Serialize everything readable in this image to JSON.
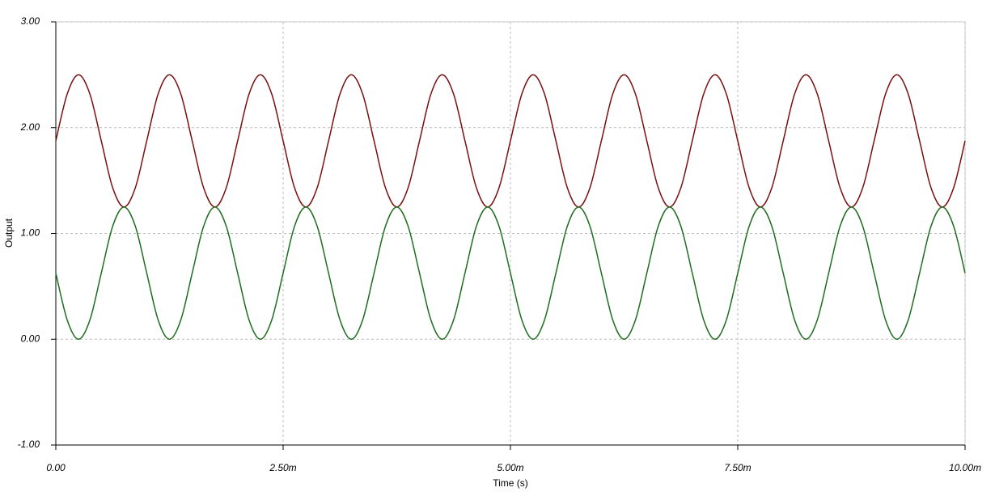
{
  "chart_data": {
    "type": "line",
    "xlabel": "Time (s)",
    "ylabel": "Output",
    "x": [
      0,
      0.000125,
      0.00025,
      0.000375,
      0.0005,
      0.000625,
      0.00075,
      0.000875,
      0.001,
      0.001125,
      0.00125,
      0.001375,
      0.0015,
      0.001625,
      0.00175,
      0.001875,
      0.002,
      0.002125,
      0.00225,
      0.002375,
      0.0025,
      0.002625,
      0.00275,
      0.002875,
      0.003,
      0.003125,
      0.00325,
      0.003375,
      0.0035,
      0.003625,
      0.00375,
      0.003875,
      0.004,
      0.004125,
      0.00425,
      0.004375,
      0.0045,
      0.004625,
      0.00475,
      0.004875,
      0.005,
      0.005125,
      0.00525,
      0.005375,
      0.0055,
      0.005625,
      0.00575,
      0.005875,
      0.006,
      0.006125,
      0.00625,
      0.006375,
      0.0065,
      0.006625,
      0.00675,
      0.006875,
      0.007,
      0.007125,
      0.00725,
      0.007375,
      0.0075,
      0.007625,
      0.00775,
      0.007875,
      0.008,
      0.008125,
      0.00825,
      0.008375,
      0.0085,
      0.008625,
      0.00875,
      0.008875,
      0.009,
      0.009125,
      0.00925,
      0.009375,
      0.0095,
      0.009625,
      0.00975,
      0.009875,
      0.01
    ],
    "series": [
      {
        "color": "#7a1010",
        "values": [
          1.875,
          2.317,
          2.5,
          2.317,
          1.875,
          1.433,
          1.25,
          1.433,
          1.875,
          2.317,
          2.5,
          2.317,
          1.875,
          1.433,
          1.25,
          1.433,
          1.875,
          2.317,
          2.5,
          2.317,
          1.875,
          1.433,
          1.25,
          1.433,
          1.875,
          2.317,
          2.5,
          2.317,
          1.875,
          1.433,
          1.25,
          1.433,
          1.875,
          2.317,
          2.5,
          2.317,
          1.875,
          1.433,
          1.25,
          1.433,
          1.875,
          2.317,
          2.5,
          2.317,
          1.875,
          1.433,
          1.25,
          1.433,
          1.875,
          2.317,
          2.5,
          2.317,
          1.875,
          1.433,
          1.25,
          1.433,
          1.875,
          2.317,
          2.5,
          2.317,
          1.875,
          1.433,
          1.25,
          1.433,
          1.875,
          2.317,
          2.5,
          2.317,
          1.875,
          1.433,
          1.25,
          1.433,
          1.875,
          2.317,
          2.5,
          2.317,
          1.875,
          1.433,
          1.25,
          1.433,
          1.875
        ]
      },
      {
        "color": "#1e6e1e",
        "values": [
          0.625,
          0.183,
          0,
          0.183,
          0.625,
          1.067,
          1.25,
          1.067,
          0.625,
          0.183,
          0,
          0.183,
          0.625,
          1.067,
          1.25,
          1.067,
          0.625,
          0.183,
          0,
          0.183,
          0.625,
          1.067,
          1.25,
          1.067,
          0.625,
          0.183,
          0,
          0.183,
          0.625,
          1.067,
          1.25,
          1.067,
          0.625,
          0.183,
          0,
          0.183,
          0.625,
          1.067,
          1.25,
          1.067,
          0.625,
          0.183,
          0,
          0.183,
          0.625,
          1.067,
          1.25,
          1.067,
          0.625,
          0.183,
          0,
          0.183,
          0.625,
          1.067,
          1.25,
          1.067,
          0.625,
          0.183,
          0,
          0.183,
          0.625,
          1.067,
          1.25,
          1.067,
          0.625,
          0.183,
          0,
          0.183,
          0.625,
          1.067,
          1.25,
          1.067,
          0.625,
          0.183,
          0,
          0.183,
          0.625,
          1.067,
          1.25,
          1.067,
          0.625
        ]
      }
    ],
    "xlim": [
      0,
      0.01
    ],
    "xticks": [
      {
        "value": 0,
        "label": "0.00"
      },
      {
        "value": 0.0025,
        "label": "2.50m"
      },
      {
        "value": 0.005,
        "label": "5.00m"
      },
      {
        "value": 0.0075,
        "label": "7.50m"
      },
      {
        "value": 0.01,
        "label": "10.00m"
      }
    ],
    "ylim": [
      -1,
      3
    ],
    "yticks": [
      {
        "value": -1,
        "label": "-1.00"
      },
      {
        "value": 0,
        "label": "0.00"
      },
      {
        "value": 1,
        "label": "1.00"
      },
      {
        "value": 2,
        "label": "2.00"
      },
      {
        "value": 3,
        "label": "3.00"
      }
    ],
    "grid": true
  }
}
